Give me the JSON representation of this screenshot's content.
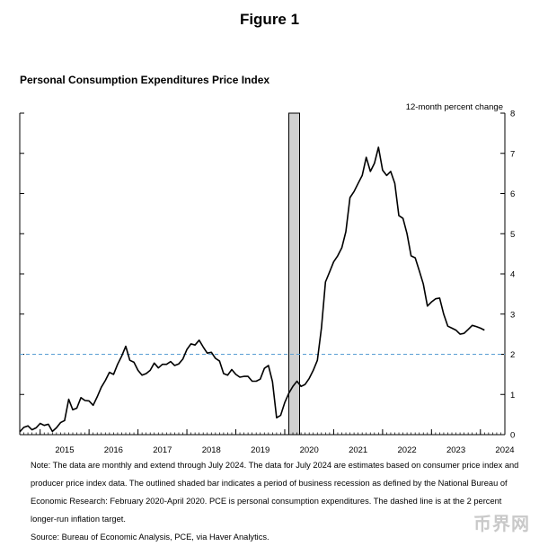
{
  "figure_title": "Figure 1",
  "watermark": "币界网",
  "notes": {
    "note": "Note: The data are monthly and extend through July 2024. The data for July 2024 are estimates based on consumer price index and producer price index data. The outlined shaded bar indicates a period of business recession as defined by the National Bureau of Economic Research: February 2020-April 2020. PCE is personal consumption expenditures. The dashed line is at the 2 percent longer-run inflation target.",
    "source": "Source: Bureau of Economic Analysis, PCE, via Haver Analytics."
  },
  "chart_data": {
    "type": "line",
    "title": "Personal Consumption Expenditures Price Index",
    "ylabel": "12-month percent change",
    "xlabel": "",
    "x_start": "2014-08",
    "x_end": "2024-07",
    "ylim": [
      0,
      8
    ],
    "y_ticks": [
      "0",
      "1",
      "2",
      "3",
      "4",
      "5",
      "6",
      "7",
      "8"
    ],
    "x_ticks": [
      "2015",
      "2016",
      "2017",
      "2018",
      "2019",
      "2020",
      "2021",
      "2022",
      "2023",
      "2024"
    ],
    "reference_line": {
      "value": 2,
      "style": "dashed",
      "label": "2 percent longer-run inflation target"
    },
    "recession": {
      "start": "2020-02",
      "end": "2020-04"
    },
    "series": [
      {
        "name": "PCE price index, 12-month percent change",
        "start": "2014-08",
        "values": [
          0.07,
          0.18,
          0.22,
          0.12,
          0.17,
          0.28,
          0.23,
          0.26,
          0.08,
          0.17,
          0.3,
          0.35,
          0.88,
          0.62,
          0.66,
          0.92,
          0.85,
          0.84,
          0.73,
          0.94,
          1.18,
          1.35,
          1.55,
          1.5,
          1.75,
          1.95,
          2.2,
          1.85,
          1.8,
          1.6,
          1.48,
          1.52,
          1.6,
          1.78,
          1.66,
          1.75,
          1.75,
          1.82,
          1.72,
          1.76,
          1.88,
          2.12,
          2.26,
          2.23,
          2.35,
          2.18,
          2.03,
          2.05,
          1.9,
          1.83,
          1.52,
          1.48,
          1.62,
          1.5,
          1.43,
          1.45,
          1.45,
          1.33,
          1.33,
          1.38,
          1.65,
          1.72,
          1.32,
          0.42,
          0.48,
          0.8,
          1.03,
          1.2,
          1.33,
          1.2,
          1.25,
          1.4,
          1.6,
          1.85,
          2.65,
          3.8,
          4.05,
          4.3,
          4.45,
          4.65,
          5.05,
          5.9,
          6.05,
          6.25,
          6.45,
          6.9,
          6.55,
          6.75,
          7.15,
          6.58,
          6.45,
          6.55,
          6.25,
          5.45,
          5.38,
          5.0,
          4.45,
          4.4,
          4.08,
          3.75,
          3.2,
          3.3,
          3.38,
          3.4,
          3.0,
          2.7,
          2.65,
          2.6,
          2.5,
          2.52,
          2.62,
          2.72,
          2.69,
          2.65,
          2.6
        ]
      }
    ]
  }
}
